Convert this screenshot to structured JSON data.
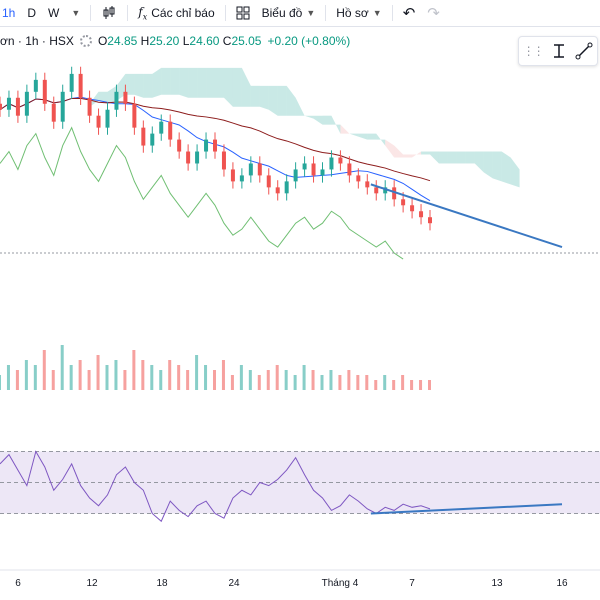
{
  "toolbar": {
    "timeframes": [
      "1h",
      "D",
      "W"
    ],
    "indicators_label": "Các chỉ báo",
    "chart_type_label": "Biểu đồ",
    "profile_label": "Hồ sơ"
  },
  "legend": {
    "symbol_suffix": "ơn",
    "interval": "1h",
    "exchange": "HSX",
    "open_key": "O",
    "open": "24.85",
    "high_key": "H",
    "high": "25.20",
    "low_key": "L",
    "low": "24.60",
    "close_key": "C",
    "close": "25.05",
    "change": "+0.20 (+0.80%)"
  },
  "colors": {
    "up": "#26a69a",
    "down": "#ef5350",
    "rsi_line": "#7e57c2",
    "rsi_band": "#ede7f6",
    "trendline": "#3a78c2",
    "cloud_bull": "#26a69a",
    "cloud_bear": "#ef9a9a"
  },
  "chart_data": {
    "type": "candlestick",
    "x_ticks": [
      "6",
      "12",
      "18",
      "24",
      "Tháng 4",
      "7",
      "13",
      "16"
    ],
    "x_tick_days": [
      6,
      12,
      18,
      24,
      31,
      38,
      44,
      47
    ],
    "price_close": [
      25.6,
      25.8,
      25.5,
      25.9,
      26.1,
      25.7,
      25.4,
      25.9,
      26.2,
      25.8,
      25.5,
      25.3,
      25.6,
      25.9,
      25.7,
      25.3,
      25.0,
      25.2,
      25.4,
      25.1,
      24.9,
      24.7,
      24.9,
      25.1,
      24.9,
      24.6,
      24.4,
      24.5,
      24.7,
      24.5,
      24.3,
      24.2,
      24.4,
      24.6,
      24.7,
      24.5,
      24.6,
      24.8,
      24.7,
      24.5,
      24.4,
      24.3,
      24.2,
      24.3,
      24.1,
      24.0,
      23.9,
      23.8,
      23.7
    ],
    "volume": [
      3,
      5,
      4,
      6,
      5,
      8,
      4,
      9,
      5,
      6,
      4,
      7,
      5,
      6,
      4,
      8,
      6,
      5,
      4,
      6,
      5,
      4,
      7,
      5,
      4,
      6,
      3,
      5,
      4,
      3,
      4,
      5,
      4,
      3,
      5,
      4,
      3,
      4,
      3,
      4,
      3,
      3,
      2,
      3,
      2,
      3,
      2,
      2,
      2
    ],
    "rsi": [
      62,
      68,
      58,
      48,
      70,
      60,
      45,
      52,
      62,
      48,
      40,
      35,
      42,
      55,
      60,
      50,
      45,
      30,
      25,
      38,
      32,
      28,
      35,
      38,
      30,
      27,
      40,
      45,
      42,
      50,
      48,
      52,
      58,
      66,
      55,
      45,
      40,
      32,
      35,
      42,
      38,
      33,
      30,
      34,
      32,
      36,
      34,
      35,
      33
    ],
    "rsi_band": [
      30,
      70
    ],
    "trendline_price": {
      "from": {
        "day": 34,
        "value": 24.35
      },
      "to": {
        "day": 50,
        "value": 23.3
      }
    },
    "trendline_rsi": {
      "from": {
        "day": 34,
        "value": 30
      },
      "to": {
        "day": 50,
        "value": 36
      }
    }
  }
}
